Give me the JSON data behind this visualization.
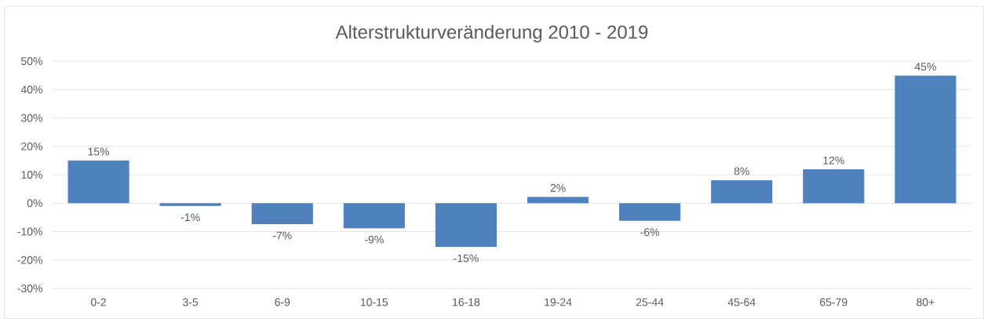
{
  "chart_data": {
    "type": "bar",
    "title": "Alterstrukturveränderung 2010 - 2019",
    "categories": [
      "0-2",
      "3-5",
      "6-9",
      "10-15",
      "16-18",
      "19-24",
      "25-44",
      "45-64",
      "65-79",
      "80+"
    ],
    "values": [
      15,
      -1,
      -7.4,
      -8.8,
      -15.4,
      2.2,
      -6.2,
      8.1,
      11.9,
      44.9
    ],
    "value_labels": [
      "15%",
      "-1%",
      "-7%",
      "-9%",
      "-15%",
      "2%",
      "-6%",
      "8%",
      "12%",
      "45%"
    ],
    "color": "#4f81bd",
    "ylim": [
      -30,
      50
    ],
    "yticks": [
      {
        "value": -30,
        "label": "-30%"
      },
      {
        "value": -20,
        "label": "-20%"
      },
      {
        "value": -10,
        "label": "-10%"
      },
      {
        "value": 0,
        "label": "0%"
      },
      {
        "value": 10,
        "label": "10%"
      },
      {
        "value": 20,
        "label": "20%"
      },
      {
        "value": 30,
        "label": "30%"
      },
      {
        "value": 40,
        "label": "40%"
      },
      {
        "value": 50,
        "label": "50%"
      }
    ],
    "grid": "y"
  }
}
